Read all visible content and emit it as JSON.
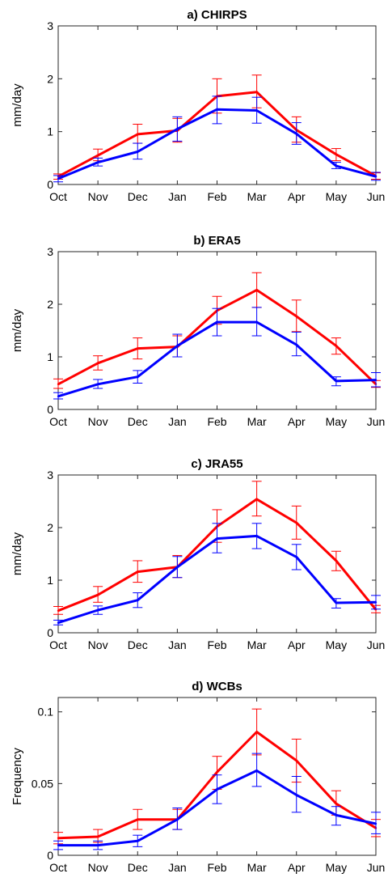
{
  "chart_data": [
    {
      "type": "line",
      "title": "a) CHIRPS",
      "ylabel": "mm/day",
      "ylim": [
        0,
        3
      ],
      "yticks": [
        0,
        1,
        2,
        3
      ],
      "ytick_labels": [
        "0",
        "1",
        "2",
        "3"
      ],
      "categories": [
        "Oct",
        "Nov",
        "Dec",
        "Jan",
        "Feb",
        "Mar",
        "Apr",
        "May",
        "Jun"
      ],
      "grid": false,
      "series": [
        {
          "color": "#ff0000",
          "values": [
            0.15,
            0.55,
            0.95,
            1.02,
            1.67,
            1.75,
            1.03,
            0.57,
            0.16
          ],
          "error_low": [
            0.1,
            0.45,
            0.78,
            0.8,
            1.35,
            1.45,
            0.8,
            0.45,
            0.1
          ],
          "error_high": [
            0.2,
            0.67,
            1.14,
            1.25,
            2.0,
            2.07,
            1.28,
            0.68,
            0.22
          ]
        },
        {
          "color": "#0000ff",
          "values": [
            0.11,
            0.42,
            0.62,
            1.05,
            1.42,
            1.4,
            0.96,
            0.35,
            0.15
          ],
          "error_low": [
            0.05,
            0.35,
            0.48,
            0.82,
            1.15,
            1.16,
            0.76,
            0.3,
            0.08
          ],
          "error_high": [
            0.17,
            0.5,
            0.78,
            1.28,
            1.67,
            1.65,
            1.17,
            0.42,
            0.23
          ]
        }
      ]
    },
    {
      "type": "line",
      "title": "b) ERA5",
      "ylabel": "mm/day",
      "ylim": [
        0,
        3
      ],
      "yticks": [
        0,
        1,
        2,
        3
      ],
      "ytick_labels": [
        "0",
        "1",
        "2",
        "3"
      ],
      "categories": [
        "Oct",
        "Nov",
        "Dec",
        "Jan",
        "Feb",
        "Mar",
        "Apr",
        "May",
        "Jun"
      ],
      "grid": false,
      "series": [
        {
          "color": "#ff0000",
          "values": [
            0.48,
            0.88,
            1.16,
            1.19,
            1.88,
            2.27,
            1.77,
            1.21,
            0.48
          ],
          "error_low": [
            0.4,
            0.75,
            0.96,
            1.0,
            1.62,
            1.94,
            1.48,
            1.05,
            0.42
          ],
          "error_high": [
            0.58,
            1.02,
            1.36,
            1.4,
            2.15,
            2.6,
            2.08,
            1.36,
            0.55
          ]
        },
        {
          "color": "#0000ff",
          "values": [
            0.25,
            0.48,
            0.62,
            1.21,
            1.66,
            1.66,
            1.23,
            0.54,
            0.56
          ],
          "error_low": [
            0.2,
            0.4,
            0.5,
            1.0,
            1.4,
            1.4,
            1.02,
            0.45,
            0.43
          ],
          "error_high": [
            0.32,
            0.57,
            0.74,
            1.43,
            1.92,
            1.94,
            1.47,
            0.62,
            0.7
          ]
        }
      ]
    },
    {
      "type": "line",
      "title": "c) JRA55",
      "ylabel": "mm/day",
      "ylim": [
        0,
        3
      ],
      "yticks": [
        0,
        1,
        2,
        3
      ],
      "ytick_labels": [
        "0",
        "1",
        "2",
        "3"
      ],
      "categories": [
        "Oct",
        "Nov",
        "Dec",
        "Jan",
        "Feb",
        "Mar",
        "Apr",
        "May",
        "Jun"
      ],
      "grid": false,
      "series": [
        {
          "color": "#ff0000",
          "values": [
            0.42,
            0.72,
            1.16,
            1.25,
            2.02,
            2.54,
            2.09,
            1.37,
            0.44
          ],
          "error_low": [
            0.35,
            0.58,
            0.96,
            1.05,
            1.72,
            2.22,
            1.78,
            1.18,
            0.38
          ],
          "error_high": [
            0.5,
            0.88,
            1.37,
            1.47,
            2.34,
            2.88,
            2.41,
            1.55,
            0.52
          ]
        },
        {
          "color": "#0000ff",
          "values": [
            0.19,
            0.43,
            0.62,
            1.25,
            1.79,
            1.84,
            1.44,
            0.57,
            0.58
          ],
          "error_low": [
            0.15,
            0.35,
            0.48,
            1.05,
            1.52,
            1.6,
            1.2,
            0.47,
            0.45
          ],
          "error_high": [
            0.24,
            0.51,
            0.76,
            1.45,
            2.08,
            2.08,
            1.68,
            0.65,
            0.71
          ]
        }
      ]
    },
    {
      "type": "line",
      "title": "d) WCBs",
      "ylabel": "Frequency",
      "ylim": [
        0,
        0.11
      ],
      "yticks": [
        0,
        0.05,
        0.1
      ],
      "ytick_labels": [
        "0",
        "0.05",
        "0.1"
      ],
      "categories": [
        "Oct",
        "Nov",
        "Dec",
        "Jan",
        "Feb",
        "Mar",
        "Apr",
        "May",
        "Jun"
      ],
      "grid": false,
      "series": [
        {
          "color": "#ff0000",
          "values": [
            0.012,
            0.013,
            0.025,
            0.025,
            0.058,
            0.086,
            0.066,
            0.036,
            0.019
          ],
          "error_low": [
            0.008,
            0.009,
            0.018,
            0.018,
            0.046,
            0.07,
            0.051,
            0.028,
            0.013
          ],
          "error_high": [
            0.016,
            0.018,
            0.032,
            0.032,
            0.069,
            0.102,
            0.081,
            0.045,
            0.025
          ]
        },
        {
          "color": "#0000ff",
          "values": [
            0.007,
            0.007,
            0.01,
            0.025,
            0.046,
            0.059,
            0.042,
            0.028,
            0.022
          ],
          "error_low": [
            0.004,
            0.004,
            0.006,
            0.018,
            0.036,
            0.048,
            0.03,
            0.021,
            0.015
          ],
          "error_high": [
            0.01,
            0.01,
            0.014,
            0.033,
            0.056,
            0.071,
            0.055,
            0.034,
            0.03
          ]
        }
      ]
    }
  ]
}
